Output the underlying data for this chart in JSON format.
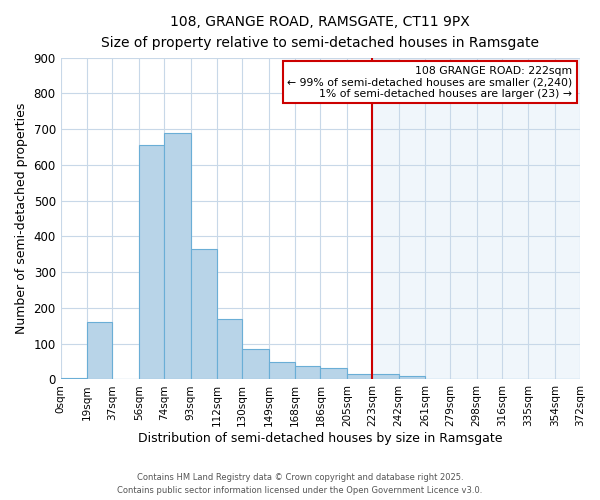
{
  "title": "108, GRANGE ROAD, RAMSGATE, CT11 9PX",
  "subtitle": "Size of property relative to semi-detached houses in Ramsgate",
  "xlabel": "Distribution of semi-detached houses by size in Ramsgate",
  "ylabel": "Number of semi-detached properties",
  "bin_edges": [
    0,
    19,
    37,
    56,
    74,
    93,
    112,
    130,
    149,
    168,
    186,
    205,
    223,
    242,
    261,
    279,
    298,
    316,
    335,
    354,
    372
  ],
  "bar_heights": [
    5,
    160,
    0,
    655,
    690,
    365,
    170,
    85,
    50,
    38,
    33,
    15,
    15,
    10,
    2,
    0,
    0,
    0,
    0,
    0
  ],
  "bar_color": "#b8d4e8",
  "bar_edge_color": "#6aaed6",
  "highlight_color": "#d6e8f5",
  "vline_x": 223,
  "vline_color": "#cc0000",
  "annotation_title": "108 GRANGE ROAD: 222sqm",
  "annotation_line1": "← 99% of semi-detached houses are smaller (2,240)",
  "annotation_line2": "1% of semi-detached houses are larger (23) →",
  "ylim": [
    0,
    900
  ],
  "yticks": [
    0,
    100,
    200,
    300,
    400,
    500,
    600,
    700,
    800,
    900
  ],
  "xtick_labels": [
    "0sqm",
    "19sqm",
    "37sqm",
    "56sqm",
    "74sqm",
    "93sqm",
    "112sqm",
    "130sqm",
    "149sqm",
    "168sqm",
    "186sqm",
    "205sqm",
    "223sqm",
    "242sqm",
    "261sqm",
    "279sqm",
    "298sqm",
    "316sqm",
    "335sqm",
    "354sqm",
    "372sqm"
  ],
  "background_color": "#ffffff",
  "grid_color": "#c8d8e8",
  "footer1": "Contains HM Land Registry data © Crown copyright and database right 2025.",
  "footer2": "Contains public sector information licensed under the Open Government Licence v3.0."
}
